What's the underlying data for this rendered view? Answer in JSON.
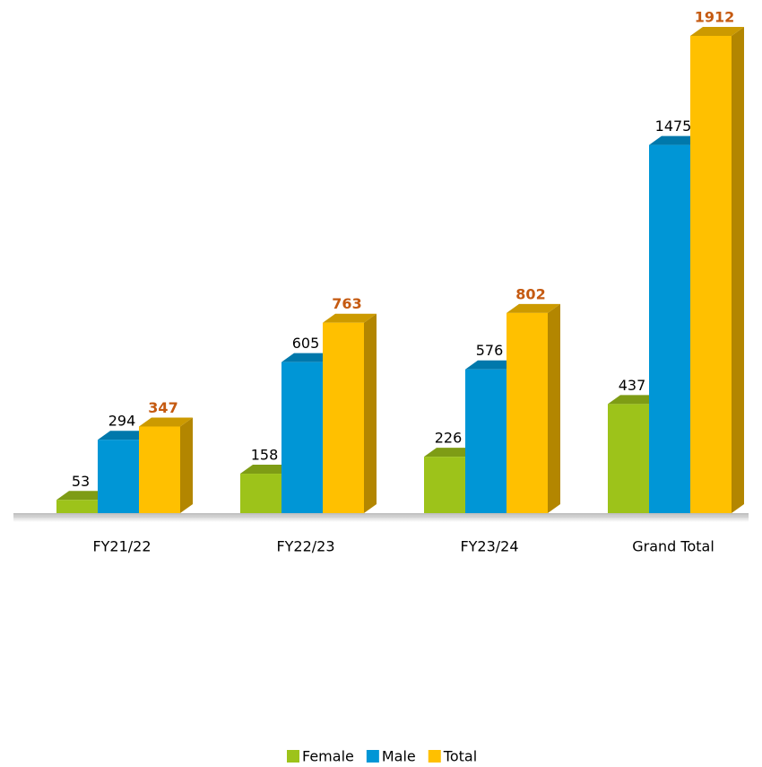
{
  "chart_data": {
    "type": "bar",
    "categories": [
      "FY21/22",
      "FY22/23",
      "FY23/24",
      "Grand Total"
    ],
    "series": [
      {
        "name": "Female",
        "color": "#9dc31a",
        "values": [
          53,
          158,
          226,
          437
        ]
      },
      {
        "name": "Male",
        "color": "#0096d6",
        "values": [
          294,
          605,
          576,
          1475
        ]
      },
      {
        "name": "Total",
        "color": "#ffc000",
        "values": [
          347,
          763,
          802,
          1912
        ]
      }
    ]
  }
}
